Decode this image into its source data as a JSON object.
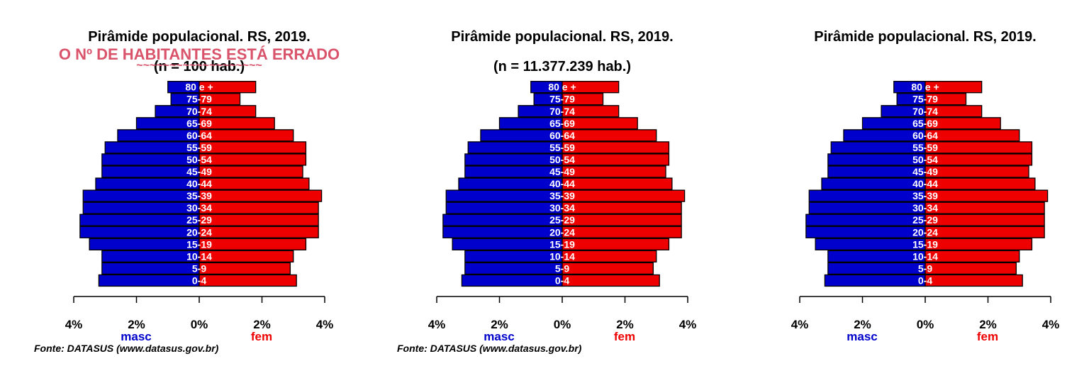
{
  "colors": {
    "male": "#0000cc",
    "female": "#ee0000",
    "warning": "#d9536b"
  },
  "warning": {
    "text": "O Nº DE HABITANTES ESTÁ ERRADO",
    "wavy": "~~~~~~~~~~~~~~~~~~~"
  },
  "chart_data": [
    {
      "type": "bar",
      "title": "Pirâmide populacional.  RS,  2019.",
      "subtitle": "(n = 100 hab.)",
      "categories": [
        "0-4",
        "5-9",
        "10-14",
        "15-19",
        "20-24",
        "25-29",
        "30-34",
        "35-39",
        "40-44",
        "45-49",
        "50-54",
        "55-59",
        "60-64",
        "65-69",
        "70-74",
        "75-79",
        "80 e +"
      ],
      "series": [
        {
          "name": "masc",
          "values": [
            3.2,
            3.1,
            3.1,
            3.5,
            3.8,
            3.8,
            3.7,
            3.7,
            3.3,
            3.1,
            3.1,
            3.0,
            2.6,
            2.0,
            1.4,
            0.9,
            1.0
          ]
        },
        {
          "name": "fem",
          "values": [
            3.1,
            2.9,
            3.0,
            3.4,
            3.8,
            3.8,
            3.8,
            3.9,
            3.5,
            3.3,
            3.4,
            3.4,
            3.0,
            2.4,
            1.8,
            1.3,
            1.8
          ]
        }
      ],
      "xticks": [
        "4%",
        "2%",
        "0%",
        "2%",
        "4%"
      ],
      "xlim": [
        -4,
        4
      ],
      "xlabel_left": "masc",
      "xlabel_right": "fem",
      "source": "Fonte: DATASUS (www.datasus.gov.br)"
    },
    {
      "type": "bar",
      "title": "Pirâmide populacional.  RS,  2019.",
      "subtitle": "(n = 11.377.239 hab.)",
      "categories": [
        "0-4",
        "5-9",
        "10-14",
        "15-19",
        "20-24",
        "25-29",
        "30-34",
        "35-39",
        "40-44",
        "45-49",
        "50-54",
        "55-59",
        "60-64",
        "65-69",
        "70-74",
        "75-79",
        "80 e +"
      ],
      "series": [
        {
          "name": "masc",
          "values": [
            3.2,
            3.1,
            3.1,
            3.5,
            3.8,
            3.8,
            3.7,
            3.7,
            3.3,
            3.1,
            3.1,
            3.0,
            2.6,
            2.0,
            1.4,
            0.9,
            1.0
          ]
        },
        {
          "name": "fem",
          "values": [
            3.1,
            2.9,
            3.0,
            3.4,
            3.8,
            3.8,
            3.8,
            3.9,
            3.5,
            3.3,
            3.4,
            3.4,
            3.0,
            2.4,
            1.8,
            1.3,
            1.8
          ]
        }
      ],
      "xticks": [
        "4%",
        "2%",
        "0%",
        "2%",
        "4%"
      ],
      "xlim": [
        -4,
        4
      ],
      "xlabel_left": "masc",
      "xlabel_right": "fem",
      "source": "Fonte: DATASUS (www.datasus.gov.br)"
    },
    {
      "type": "bar",
      "title": "Pirâmide populacional.  RS,  2019.",
      "subtitle": "",
      "categories": [
        "0-4",
        "5-9",
        "10-14",
        "15-19",
        "20-24",
        "25-29",
        "30-34",
        "35-39",
        "40-44",
        "45-49",
        "50-54",
        "55-59",
        "60-64",
        "65-69",
        "70-74",
        "75-79",
        "80 e +"
      ],
      "series": [
        {
          "name": "masc",
          "values": [
            3.2,
            3.1,
            3.1,
            3.5,
            3.8,
            3.8,
            3.7,
            3.7,
            3.3,
            3.1,
            3.1,
            3.0,
            2.6,
            2.0,
            1.4,
            0.9,
            1.0
          ]
        },
        {
          "name": "fem",
          "values": [
            3.1,
            2.9,
            3.0,
            3.4,
            3.8,
            3.8,
            3.8,
            3.9,
            3.5,
            3.3,
            3.4,
            3.4,
            3.0,
            2.4,
            1.8,
            1.3,
            1.8
          ]
        }
      ],
      "xticks": [
        "4%",
        "2%",
        "0%",
        "2%",
        "4%"
      ],
      "xlim": [
        -4,
        4
      ],
      "xlabel_left": "masc",
      "xlabel_right": "fem",
      "source": ""
    }
  ]
}
